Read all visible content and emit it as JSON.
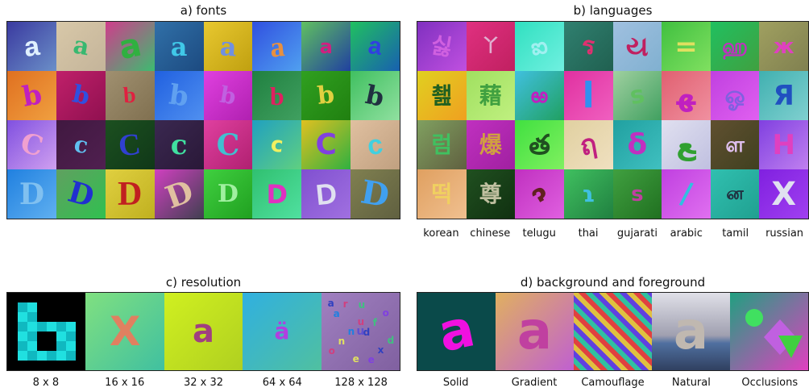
{
  "panels": {
    "a": {
      "title": "a) fonts"
    },
    "b": {
      "title": "b) languages",
      "labels": [
        "korean",
        "chinese",
        "telugu",
        "thai",
        "gujarati",
        "arabic",
        "tamil",
        "russian"
      ]
    },
    "c": {
      "title": "c) resolution",
      "labels": [
        "8 x 8",
        "16 x 16",
        "32 x 32",
        "64 x 64",
        "128 x 128"
      ]
    },
    "d": {
      "title": "d) background and foreground",
      "labels": [
        "Solid",
        "Gradient",
        "Camouflage",
        "Natural",
        "Occlusions"
      ]
    }
  },
  "fonts_rows": [
    [
      {
        "ch": "a",
        "bg": "linear-gradient(135deg,#3a3aa0,#6b8fc8)",
        "fg": "#e0f0ff",
        "rot": -8,
        "sz": 34,
        "ff": "Liberation Sans"
      },
      {
        "ch": "a",
        "bg": "linear-gradient(135deg,#d8c8a8,#c4b49a)",
        "fg": "#38b870",
        "rot": 10,
        "sz": 30,
        "ff": "DejaVu Serif"
      },
      {
        "ch": "a",
        "bg": "linear-gradient(135deg,#d03c8c,#3cbc70)",
        "fg": "#30b040",
        "rot": -12,
        "sz": 40,
        "ff": "DejaVu Sans"
      },
      {
        "ch": "a",
        "bg": "linear-gradient(135deg,#3070a8,#1c4a80)",
        "fg": "#40c8e8",
        "rot": 0,
        "sz": 32,
        "ff": "DejaVu Serif"
      },
      {
        "ch": "a",
        "bg": "linear-gradient(135deg,#e8c830,#c0a010)",
        "fg": "#7090e0",
        "rot": 4,
        "sz": 32,
        "ff": "DejaVu Serif"
      },
      {
        "ch": "a",
        "bg": "linear-gradient(135deg,#3050e0,#50a0f0)",
        "fg": "#e89040",
        "rot": -6,
        "sz": 36,
        "ff": "Liberation Serif"
      },
      {
        "ch": "a",
        "bg": "linear-gradient(135deg,#60c060,#2040a0)",
        "fg": "#d02080",
        "rot": 0,
        "sz": 24,
        "ff": "DejaVu Sans"
      },
      {
        "ch": "a",
        "bg": "linear-gradient(135deg,#20c060,#1860b0)",
        "fg": "#3040e0",
        "rot": 8,
        "sz": 30,
        "ff": "Liberation Sans"
      }
    ],
    [
      {
        "ch": "b",
        "bg": "linear-gradient(135deg,#e07020,#f0a040)",
        "fg": "#c020c0",
        "rot": -10,
        "sz": 34,
        "ff": "DejaVu Serif"
      },
      {
        "ch": "b",
        "bg": "linear-gradient(135deg,#c0206a,#901050)",
        "fg": "#3050e0",
        "rot": 12,
        "sz": 30,
        "ff": "DejaVu Serif"
      },
      {
        "ch": "b",
        "bg": "linear-gradient(135deg,#a09070,#807050)",
        "fg": "#e02040",
        "rot": -4,
        "sz": 28,
        "ff": "Liberation Serif"
      },
      {
        "ch": "b",
        "bg": "linear-gradient(135deg,#2060e0,#5090f0)",
        "fg": "#60a0f0",
        "rot": 8,
        "sz": 34,
        "ff": "DejaVu Serif"
      },
      {
        "ch": "b",
        "bg": "linear-gradient(135deg,#e040e0,#b020b0)",
        "fg": "#c060e0",
        "rot": 10,
        "sz": 28,
        "ff": "DejaVu Serif"
      },
      {
        "ch": "b",
        "bg": "linear-gradient(135deg,#208040,#40a060)",
        "fg": "#e02060",
        "rot": 0,
        "sz": 32,
        "ff": "Liberation Serif"
      },
      {
        "ch": "b",
        "bg": "linear-gradient(135deg,#30a020,#208010)",
        "fg": "#e0d040",
        "rot": -6,
        "sz": 30,
        "ff": "DejaVu Serif"
      },
      {
        "ch": "b",
        "bg": "linear-gradient(135deg,#40c060,#90e0a0)",
        "fg": "#203040",
        "rot": 12,
        "sz": 32,
        "ff": "DejaVu Serif"
      }
    ],
    [
      {
        "ch": "C",
        "bg": "linear-gradient(135deg,#8050e0,#d0a0f0)",
        "fg": "#f0a0d0",
        "rot": 14,
        "sz": 34,
        "ff": "DejaVu Serif"
      },
      {
        "ch": "c",
        "bg": "linear-gradient(135deg,#401840,#502050)",
        "fg": "#60c0f0",
        "rot": 8,
        "sz": 28,
        "ff": "DejaVu Serif"
      },
      {
        "ch": "C",
        "bg": "linear-gradient(135deg,#1c5020,#103818)",
        "fg": "#3040d0",
        "rot": -6,
        "sz": 38,
        "ff": "Liberation Serif"
      },
      {
        "ch": "c",
        "bg": "linear-gradient(135deg,#3a2850,#2a1838)",
        "fg": "#40e0a0",
        "rot": 0,
        "sz": 34,
        "ff": "DejaVu Serif"
      },
      {
        "ch": "C",
        "bg": "linear-gradient(135deg,#e040a0,#b02070)",
        "fg": "#40c0d0",
        "rot": 0,
        "sz": 36,
        "ff": "DejaVu Serif"
      },
      {
        "ch": "c",
        "bg": "linear-gradient(135deg,#20a0c0,#60d080)",
        "fg": "#f0f060",
        "rot": 6,
        "sz": 26,
        "ff": "DejaVu Sans"
      },
      {
        "ch": "C",
        "bg": "linear-gradient(135deg,#e0c020,#30b040)",
        "fg": "#8040e0",
        "rot": 0,
        "sz": 36,
        "ff": "DejaVu Sans"
      },
      {
        "ch": "c",
        "bg": "linear-gradient(135deg,#e0c0a0,#c0a080)",
        "fg": "#40d0e0",
        "rot": -8,
        "sz": 34,
        "ff": "Liberation Sans"
      }
    ],
    [
      {
        "ch": "D",
        "bg": "linear-gradient(135deg,#2080e0,#60b0f0)",
        "fg": "#80c0f0",
        "rot": 0,
        "sz": 36,
        "ff": "DejaVu Serif"
      },
      {
        "ch": "D",
        "bg": "linear-gradient(135deg,#60a060,#30c050)",
        "fg": "#2030d0",
        "rot": 16,
        "sz": 36,
        "ff": "DejaVu Serif"
      },
      {
        "ch": "D",
        "bg": "linear-gradient(135deg,#e0d040,#c0b020)",
        "fg": "#c02020",
        "rot": 0,
        "sz": 42,
        "ff": "Liberation Serif"
      },
      {
        "ch": "D",
        "bg": "linear-gradient(135deg,#d040c0,#404050)",
        "fg": "#e0c0a0",
        "rot": -20,
        "sz": 38,
        "ff": "DejaVu Serif"
      },
      {
        "ch": "D",
        "bg": "linear-gradient(135deg,#40d040,#20a020)",
        "fg": "#a0f0a0",
        "rot": 0,
        "sz": 30,
        "ff": "DejaVu Serif"
      },
      {
        "ch": "D",
        "bg": "linear-gradient(135deg,#30c070,#50e0a0)",
        "fg": "#e030c0",
        "rot": 0,
        "sz": 32,
        "ff": "DejaVu Sans"
      },
      {
        "ch": "D",
        "bg": "linear-gradient(135deg,#8050d0,#a070e0)",
        "fg": "#e0e0f0",
        "rot": -6,
        "sz": 36,
        "ff": "Liberation Sans"
      },
      {
        "ch": "D",
        "bg": "linear-gradient(135deg,#808050,#606040)",
        "fg": "#40a0f0",
        "rot": 10,
        "sz": 40,
        "ff": "DejaVu Serif"
      }
    ]
  ],
  "lang_rows": [
    [
      {
        "ch": "싫",
        "bg": "linear-gradient(135deg,#8030c0,#c050e0)",
        "fg": "#d060e0",
        "rot": 10,
        "sz": 28
      },
      {
        "ch": "丫",
        "bg": "linear-gradient(135deg,#e03080,#c02060)",
        "fg": "#e0b0d0",
        "rot": 0,
        "sz": 22
      },
      {
        "ch": "ఐ",
        "bg": "linear-gradient(135deg,#30e0c0,#70f0e0)",
        "fg": "#a0f0f0",
        "rot": -10,
        "sz": 28
      },
      {
        "ch": "ร",
        "bg": "linear-gradient(135deg,#308070,#206050)",
        "fg": "#e03070",
        "rot": 0,
        "sz": 30
      },
      {
        "ch": "ય",
        "bg": "linear-gradient(135deg,#a0c0e0,#80b0d0)",
        "fg": "#c02060",
        "rot": 0,
        "sz": 34
      },
      {
        "ch": "=",
        "bg": "linear-gradient(135deg,#40c040,#80e060)",
        "fg": "#e0e060",
        "rot": 0,
        "sz": 34
      },
      {
        "ch": "ஹ",
        "bg": "linear-gradient(135deg,#20c060,#40a040)",
        "fg": "#c030c0",
        "rot": 0,
        "sz": 26
      },
      {
        "ch": "ж",
        "bg": "linear-gradient(135deg,#a0a060,#808050)",
        "fg": "#e040c0",
        "rot": 0,
        "sz": 26
      }
    ],
    [
      {
        "ch": "쵎",
        "bg": "linear-gradient(135deg,#e0d020,#f0a020)",
        "fg": "#206020",
        "rot": 0,
        "sz": 28
      },
      {
        "ch": "藉",
        "bg": "linear-gradient(135deg,#a0e060,#c0f080)",
        "fg": "#40a040",
        "rot": 0,
        "sz": 28
      },
      {
        "ch": "ఱ",
        "bg": "linear-gradient(135deg,#40c0e0,#20a060)",
        "fg": "#c020c0",
        "rot": 0,
        "sz": 26
      },
      {
        "ch": "l",
        "bg": "linear-gradient(135deg,#e030a0,#f060c0)",
        "fg": "#3090f0",
        "rot": 0,
        "sz": 44
      },
      {
        "ch": "s",
        "bg": "linear-gradient(135deg,#a0d0a0,#40a060)",
        "fg": "#60c060",
        "rot": -10,
        "sz": 30
      },
      {
        "ch": "ﻬ",
        "bg": "linear-gradient(135deg,#e06070,#f090a0)",
        "fg": "#c020c0",
        "rot": 0,
        "sz": 36
      },
      {
        "ch": "ஓ",
        "bg": "linear-gradient(135deg,#c040e0,#e060f0)",
        "fg": "#8060e0",
        "rot": 0,
        "sz": 30
      },
      {
        "ch": "Я",
        "bg": "linear-gradient(135deg,#40b0b0,#80d0d0)",
        "fg": "#2050c0",
        "rot": 0,
        "sz": 34
      }
    ],
    [
      {
        "ch": "럼",
        "bg": "linear-gradient(135deg,#80a060,#606040)",
        "fg": "#40c060",
        "rot": 0,
        "sz": 28
      },
      {
        "ch": "爆",
        "bg": "linear-gradient(135deg,#c030c0,#a020a0)",
        "fg": "#d0a040",
        "rot": 0,
        "sz": 28
      },
      {
        "ch": "త",
        "bg": "linear-gradient(135deg,#40e040,#80f060)",
        "fg": "#205020",
        "rot": 0,
        "sz": 34
      },
      {
        "ch": "ฤ",
        "bg": "linear-gradient(135deg,#e0d0a0,#f0e0c0)",
        "fg": "#c02080",
        "rot": -10,
        "sz": 34
      },
      {
        "ch": "δ",
        "bg": "linear-gradient(135deg,#20a0a0,#40c0c0)",
        "fg": "#c030c0",
        "rot": 0,
        "sz": 36
      },
      {
        "ch": "ﻊ",
        "bg": "linear-gradient(135deg,#e0e0f0,#c0c0e0)",
        "fg": "#30a030",
        "rot": 0,
        "sz": 36
      },
      {
        "ch": "ள",
        "bg": "linear-gradient(135deg,#605030,#404020)",
        "fg": "#e0c0f0",
        "rot": 0,
        "sz": 26
      },
      {
        "ch": "H",
        "bg": "linear-gradient(135deg,#8040e0,#c080f0)",
        "fg": "#e040c0",
        "rot": 0,
        "sz": 34
      }
    ],
    [
      {
        "ch": "떡",
        "bg": "linear-gradient(135deg,#e0a060,#f0c090)",
        "fg": "#f0d060",
        "rot": 0,
        "sz": 28
      },
      {
        "ch": "尊",
        "bg": "linear-gradient(135deg,#205020,#103010)",
        "fg": "#c0c0a0",
        "rot": 0,
        "sz": 28
      },
      {
        "ch": "ɂ",
        "bg": "linear-gradient(135deg,#c030c0,#e060e0)",
        "fg": "#602020",
        "rot": -30,
        "sz": 30
      },
      {
        "ch": "ɿ",
        "bg": "linear-gradient(135deg,#40c060,#208040)",
        "fg": "#40c0e0",
        "rot": 0,
        "sz": 28
      },
      {
        "ch": "s",
        "bg": "linear-gradient(135deg,#40a040,#207020)",
        "fg": "#c040a0",
        "rot": 0,
        "sz": 26
      },
      {
        "ch": "/",
        "bg": "linear-gradient(135deg,#c040e0,#e070f0)",
        "fg": "#30c0e0",
        "rot": 10,
        "sz": 36
      },
      {
        "ch": "ன",
        "bg": "linear-gradient(135deg,#30c0b0,#20a090)",
        "fg": "#203040",
        "rot": 0,
        "sz": 22
      },
      {
        "ch": "X",
        "bg": "linear-gradient(135deg,#8020e0,#a040f0)",
        "fg": "#e0e0f0",
        "rot": 0,
        "sz": 40
      }
    ]
  ],
  "res_cells": [
    {
      "ch": "",
      "bg": "#000000",
      "fg": "#10d0d0",
      "sz": 0
    },
    {
      "ch": "X",
      "bg": "linear-gradient(135deg,#80e080,#40c0a0)",
      "fg": "#e08060",
      "sz": 50
    },
    {
      "ch": "a",
      "bg": "linear-gradient(135deg,#d0f020,#b0d020)",
      "fg": "#a04080",
      "sz": 40
    },
    {
      "ch": "ä",
      "bg": "linear-gradient(135deg,#30b0e0,#50c0a0)",
      "fg": "#b040e0",
      "sz": 28
    },
    {
      "ch": "u",
      "bg": "linear-gradient(135deg,#a080c0,#8060a0)",
      "fg": "#6050d0",
      "sz": 14
    }
  ],
  "res_lowres_b": [
    "........",
    ".XX.....",
    ".XX.....",
    ".XXXXXX.",
    ".XX..XX.",
    ".XX..XX.",
    ".XXXXXX.",
    "........"
  ],
  "bg_cells": [
    {
      "ch": "a",
      "bg": "#0a4a4a",
      "fg": "#f010e0",
      "rot": -12,
      "sz": 64
    },
    {
      "ch": "a",
      "bg": "linear-gradient(135deg,#e0b060,#c060d0)",
      "fg": "#c040a0",
      "rot": 0,
      "sz": 64
    },
    {
      "ch": "",
      "bg": "repeating-linear-gradient(45deg,#e04040 0 6px,#30c0a0 6px 12px,#6040e0 12px 18px,#e0c040 18px 24px)",
      "fg": "",
      "rot": 0,
      "sz": 0
    },
    {
      "ch": "a",
      "bg": "linear-gradient(180deg,#e0e0e8 0%,#a0a0b0 55%,#5070a0 65%,#304060 100%)",
      "fg": "#c0b8b0",
      "rot": 0,
      "sz": 64
    },
    {
      "ch": "",
      "bg": "linear-gradient(135deg,#20a080,#e040c0)",
      "fg": "",
      "rot": 0,
      "sz": 0
    }
  ]
}
